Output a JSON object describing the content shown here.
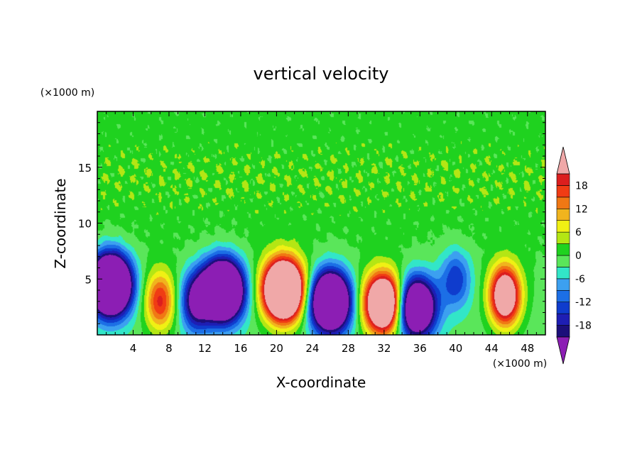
{
  "chart_data": {
    "type": "heatmap",
    "title": "vertical velocity",
    "xlabel": "X-coordinate",
    "ylabel": "Z-coordinate",
    "x_unit": "(×1000 m)",
    "y_unit": "(×1000 m)",
    "xlim": [
      0,
      50
    ],
    "ylim": [
      0,
      20
    ],
    "x_ticks": [
      "4",
      "8",
      "12",
      "16",
      "20",
      "24",
      "28",
      "32",
      "36",
      "40",
      "44",
      "48"
    ],
    "y_ticks": [
      "5",
      "10",
      "15"
    ],
    "colorbar": {
      "levels": [
        -21,
        -18,
        -15,
        -12,
        -9,
        -6,
        -3,
        0,
        3,
        6,
        9,
        12,
        15,
        18,
        21
      ],
      "tick_labels": [
        "-18",
        "-12",
        "-6",
        "0",
        "6",
        "12",
        "18"
      ],
      "colors": [
        "#5a0a8c",
        "#1c0f7a",
        "#1e1eb4",
        "#0f3ccd",
        "#1c6fe6",
        "#3ca0f0",
        "#32e6c8",
        "#5ae65a",
        "#1fd21f",
        "#b4e614",
        "#f0f014",
        "#f0b41e",
        "#f07814",
        "#f03c14",
        "#dc1e1e",
        "#f0a8a8"
      ],
      "over_color": "#f0a8a8",
      "under_color": "#8c1eb4"
    },
    "features": [
      {
        "x": 20.8,
        "z": 4.0,
        "w": 60,
        "sign": "updraft"
      },
      {
        "x": 32.0,
        "z": 2.8,
        "w": 48,
        "sign": "updraft"
      },
      {
        "x": 45.5,
        "z": 3.5,
        "w": 36,
        "sign": "updraft"
      },
      {
        "x": 7.0,
        "z": 3.0,
        "w": 20,
        "sign": "updraft"
      },
      {
        "x": 1.5,
        "z": 4.5,
        "w": -60,
        "sign": "downdraft"
      },
      {
        "x": 14.0,
        "z": 4.0,
        "w": -58,
        "sign": "downdraft"
      },
      {
        "x": 26.0,
        "z": 3.0,
        "w": -52,
        "sign": "downdraft"
      },
      {
        "x": 35.5,
        "z": 2.5,
        "w": -44,
        "sign": "downdraft"
      },
      {
        "x": 11.0,
        "z": 3.0,
        "w": -22,
        "sign": "downdraft"
      },
      {
        "x": 40.0,
        "z": 5.0,
        "w": -14,
        "sign": "downdraft"
      }
    ]
  }
}
